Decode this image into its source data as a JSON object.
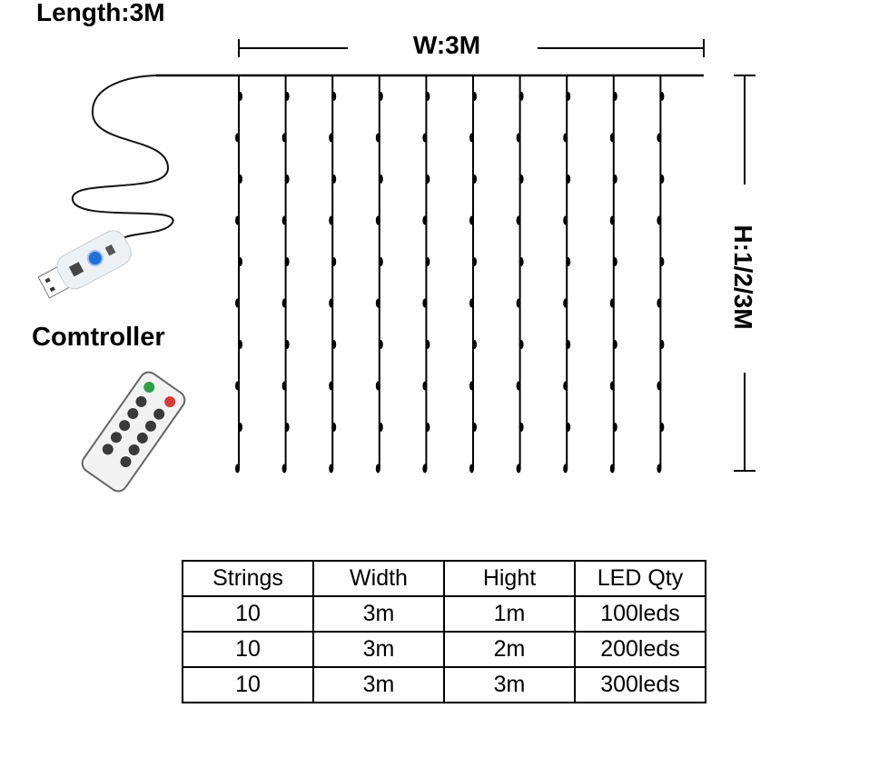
{
  "title": "Length:3M",
  "width_label": "W:3M",
  "height_label": "H:1/2/3M",
  "controller_label": "Comtroller",
  "icons": [
    "usb-controller-icon",
    "remote-control-icon",
    "curtain-light-strings"
  ],
  "colors": {
    "remote_green": "#2e9e4a",
    "remote_red": "#d83a3a",
    "usb_button": "#1e6fd9"
  },
  "table": {
    "headers": [
      "Strings",
      "Width",
      "Hight",
      "LED Qty"
    ],
    "rows": [
      [
        "10",
        "3m",
        "1m",
        "100leds"
      ],
      [
        "10",
        "3m",
        "2m",
        "200leds"
      ],
      [
        "10",
        "3m",
        "3m",
        "300leds"
      ]
    ]
  }
}
